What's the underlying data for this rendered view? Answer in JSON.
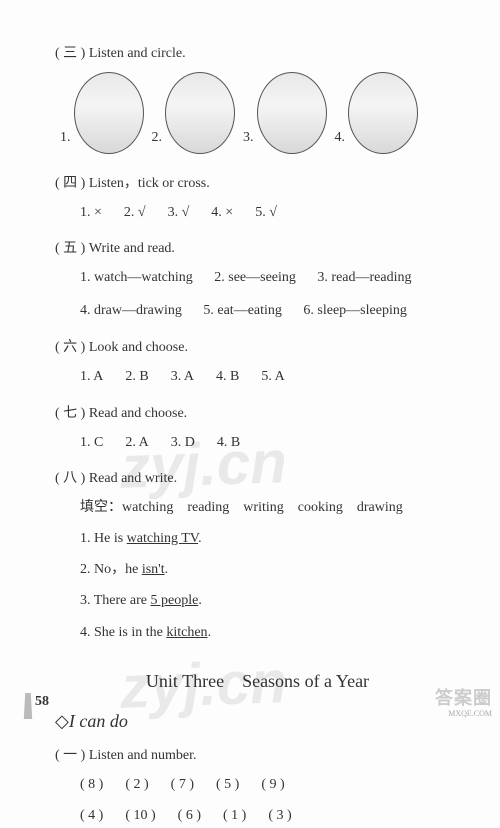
{
  "section3": {
    "title": "( 三 ) Listen and circle.",
    "nums": [
      "1.",
      "2.",
      "3.",
      "4."
    ]
  },
  "section4": {
    "title": "( 四 ) Listen，tick or cross.",
    "answers": [
      "1. ×",
      "2. √",
      "3. √",
      "4. ×",
      "5. √"
    ]
  },
  "section5": {
    "title": "( 五 ) Write and read.",
    "row1": [
      "1. watch—watching",
      "2. see—seeing",
      "3. read—reading"
    ],
    "row2": [
      "4. draw—drawing",
      "5. eat—eating",
      "6. sleep—sleeping"
    ]
  },
  "section6": {
    "title": "( 六 ) Look and choose.",
    "answers": [
      "1. A",
      "2. B",
      "3. A",
      "4. B",
      "5. A"
    ]
  },
  "section7": {
    "title": "( 七 ) Read and choose.",
    "answers": [
      "1. C",
      "2. A",
      "3. D",
      "4. B"
    ]
  },
  "section8": {
    "title": "( 八 ) Read and write.",
    "fill_label": "填空：",
    "fill_words": "watching　reading　writing　cooking　drawing",
    "lines": {
      "l1a": "1. He is ",
      "l1u": "watching TV",
      "l1b": ".",
      "l2a": "2. No，he ",
      "l2u": "isn't",
      "l2b": ".",
      "l3a": "3. There are ",
      "l3u": "5 people",
      "l3b": ".",
      "l4a": "4. She is in the ",
      "l4u": "kitchen",
      "l4b": "."
    }
  },
  "unit_title": "Unit Three　Seasons of a Year",
  "icando": "I can do",
  "section_b1": {
    "title": "( 一 ) Listen and number.",
    "row1": [
      "( 8 )",
      "( 2 )",
      "( 7 )",
      "( 5 )",
      "( 9 )"
    ],
    "row2": [
      "( 4 )",
      "( 10 )",
      "( 6 )",
      "( 1 )",
      "( 3 )"
    ]
  },
  "page_number": "58",
  "watermark_text": "zyj.cn",
  "corner": {
    "line1": "答案圈",
    "line2": "MXQE.COM"
  }
}
